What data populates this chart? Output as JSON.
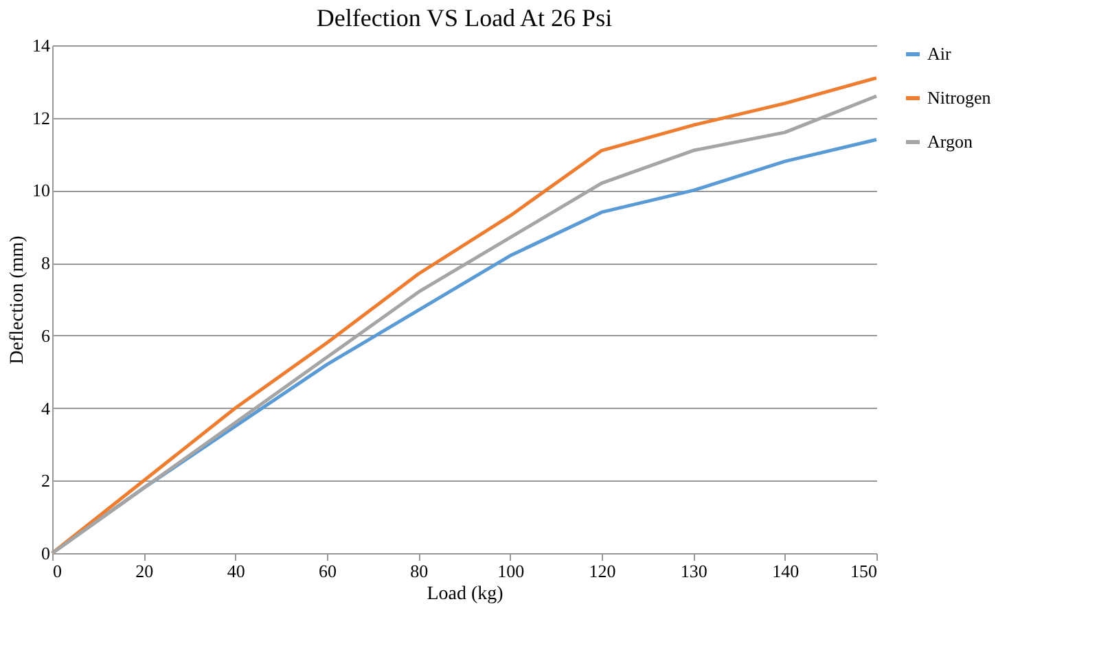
{
  "chart_data": {
    "type": "line",
    "title": "Delfection VS Load At 26 Psi",
    "xlabel": "Load (kg)",
    "ylabel": "Deflection (mm)",
    "categories": [
      "0",
      "20",
      "40",
      "60",
      "80",
      "100",
      "120",
      "130",
      "140",
      "150"
    ],
    "series": [
      {
        "name": "Air",
        "color": "#5b9bd5",
        "values": [
          0,
          1.8,
          3.5,
          5.2,
          6.7,
          8.2,
          9.4,
          10.0,
          10.8,
          11.4
        ]
      },
      {
        "name": "Nitrogen",
        "color": "#ed7d31",
        "values": [
          0,
          2.0,
          4.0,
          5.8,
          7.7,
          9.3,
          11.1,
          11.8,
          12.4,
          13.1
        ]
      },
      {
        "name": "Argon",
        "color": "#a5a5a5",
        "values": [
          0,
          1.8,
          3.6,
          5.4,
          7.2,
          8.7,
          10.2,
          11.1,
          11.6,
          12.6
        ]
      }
    ],
    "ylim": [
      0,
      14
    ],
    "yticks": [
      0,
      2,
      4,
      6,
      8,
      10,
      12,
      14
    ],
    "grid": "y",
    "legend": "right",
    "marker": "none"
  }
}
